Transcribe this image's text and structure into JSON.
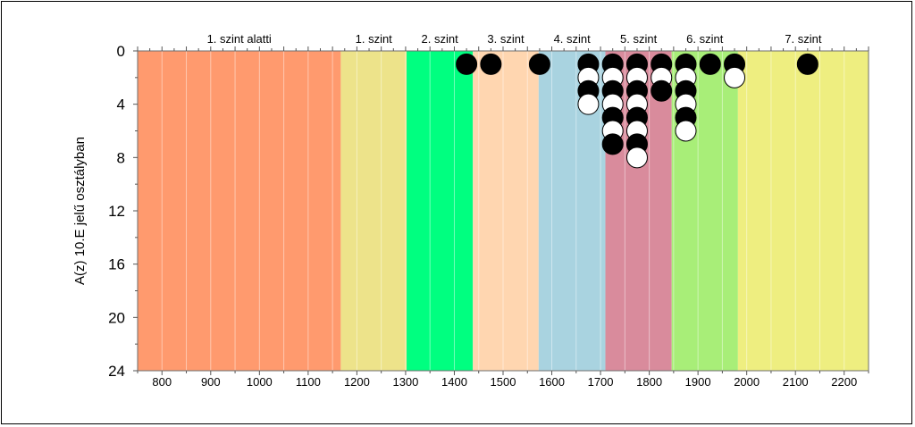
{
  "chart_data": {
    "type": "scatter",
    "title": "",
    "xlabel": "",
    "ylabel": "A(z) 10.E jelű osztályban",
    "xlim": [
      750,
      2250
    ],
    "ylim": [
      0,
      24
    ],
    "x_ticks": [
      800,
      900,
      1000,
      1100,
      1200,
      1300,
      1400,
      1500,
      1600,
      1700,
      1800,
      1900,
      2000,
      2100,
      2200
    ],
    "y_ticks": [
      0,
      4,
      8,
      12,
      16,
      20,
      24
    ],
    "bands": [
      {
        "label": "1. szint alatti",
        "from": 750,
        "to": 1167,
        "color": "#ff9a6e"
      },
      {
        "label": "1. szint",
        "from": 1167,
        "to": 1302,
        "color": "#ede38a"
      },
      {
        "label": "2. szint",
        "from": 1302,
        "to": 1438,
        "color": "#00ff80"
      },
      {
        "label": "3. szint",
        "from": 1438,
        "to": 1573,
        "color": "#ffd6b0"
      },
      {
        "label": "4. szint",
        "from": 1573,
        "to": 1710,
        "color": "#a9d3e0"
      },
      {
        "label": "5. szint",
        "from": 1710,
        "to": 1846,
        "color": "#d98b9c"
      },
      {
        "label": "6. szint",
        "from": 1846,
        "to": 1982,
        "color": "#a8ee78"
      },
      {
        "label": "7. szint",
        "from": 1982,
        "to": 2250,
        "color": "#eeee80"
      }
    ],
    "points": [
      {
        "x": 1425,
        "y": 1,
        "fill": "black"
      },
      {
        "x": 1475,
        "y": 1,
        "fill": "black"
      },
      {
        "x": 1575,
        "y": 1,
        "fill": "black"
      },
      {
        "x": 1675,
        "y": 1,
        "fill": "black"
      },
      {
        "x": 1675,
        "y": 2,
        "fill": "white"
      },
      {
        "x": 1675,
        "y": 3,
        "fill": "black"
      },
      {
        "x": 1675,
        "y": 4,
        "fill": "white"
      },
      {
        "x": 1725,
        "y": 1,
        "fill": "black"
      },
      {
        "x": 1725,
        "y": 2,
        "fill": "white"
      },
      {
        "x": 1725,
        "y": 3,
        "fill": "black"
      },
      {
        "x": 1725,
        "y": 4,
        "fill": "white"
      },
      {
        "x": 1725,
        "y": 5,
        "fill": "black"
      },
      {
        "x": 1725,
        "y": 6,
        "fill": "white"
      },
      {
        "x": 1725,
        "y": 7,
        "fill": "black"
      },
      {
        "x": 1775,
        "y": 1,
        "fill": "black"
      },
      {
        "x": 1775,
        "y": 2,
        "fill": "white"
      },
      {
        "x": 1775,
        "y": 3,
        "fill": "black"
      },
      {
        "x": 1775,
        "y": 4,
        "fill": "white"
      },
      {
        "x": 1775,
        "y": 5,
        "fill": "black"
      },
      {
        "x": 1775,
        "y": 6,
        "fill": "white"
      },
      {
        "x": 1775,
        "y": 7,
        "fill": "black"
      },
      {
        "x": 1775,
        "y": 8,
        "fill": "white"
      },
      {
        "x": 1825,
        "y": 1,
        "fill": "black"
      },
      {
        "x": 1825,
        "y": 2,
        "fill": "white"
      },
      {
        "x": 1825,
        "y": 3,
        "fill": "black"
      },
      {
        "x": 1875,
        "y": 1,
        "fill": "black"
      },
      {
        "x": 1875,
        "y": 2,
        "fill": "white"
      },
      {
        "x": 1875,
        "y": 3,
        "fill": "black"
      },
      {
        "x": 1875,
        "y": 4,
        "fill": "white"
      },
      {
        "x": 1875,
        "y": 5,
        "fill": "black"
      },
      {
        "x": 1875,
        "y": 6,
        "fill": "white"
      },
      {
        "x": 1925,
        "y": 1,
        "fill": "black"
      },
      {
        "x": 1975,
        "y": 1,
        "fill": "black"
      },
      {
        "x": 1975,
        "y": 2,
        "fill": "white"
      },
      {
        "x": 2125,
        "y": 1,
        "fill": "black"
      }
    ],
    "grid": true,
    "legend": "none"
  }
}
